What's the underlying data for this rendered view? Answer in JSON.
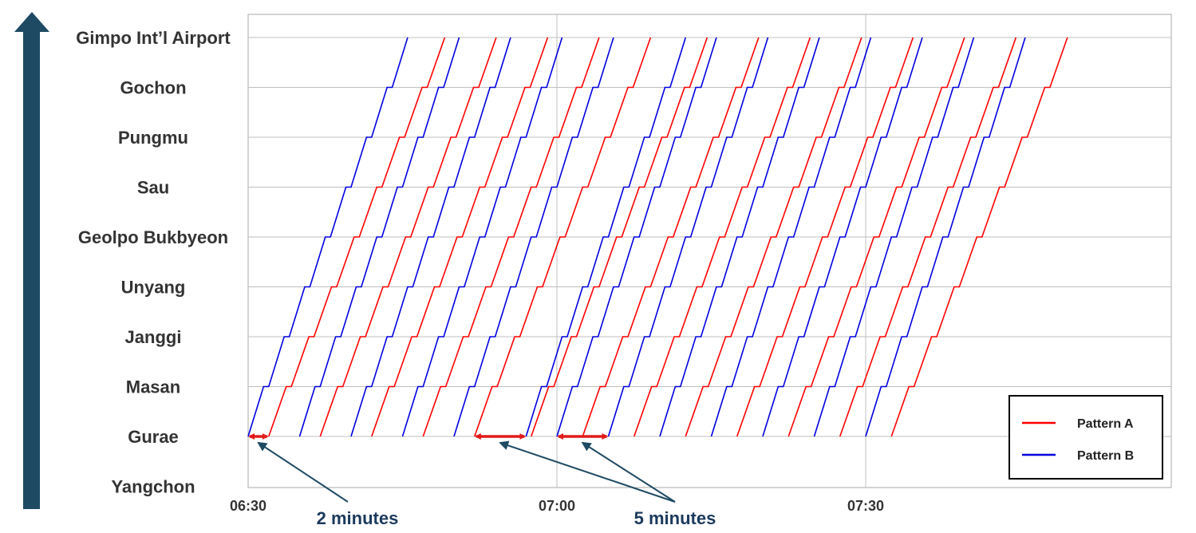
{
  "chart_data": {
    "type": "line",
    "chart_kind": "train time-space diagram",
    "stations": [
      "Yangchon",
      "Gurae",
      "Masan",
      "Janggi",
      "Unyang",
      "Geolpo Bukbyeon",
      "Sau",
      "Pungmu",
      "Gochon",
      "Gimpo Int’l Airport"
    ],
    "x_ticks": [
      "06:30",
      "07:00",
      "07:30"
    ],
    "x_unit": "minutes after 06:30",
    "xlim": [
      0,
      90
    ],
    "grid": true,
    "legend_position": "bottom-right",
    "departures_from_gurae": {
      "Pattern A": [
        2,
        7,
        12,
        17,
        22,
        27.5,
        32.5,
        37.5,
        42.5,
        47.5,
        52.5,
        57.5,
        62.5
      ],
      "Pattern B": [
        0,
        5,
        10,
        15,
        20,
        27,
        30,
        35,
        40,
        45,
        50,
        55,
        60
      ]
    },
    "series": [
      {
        "name": "Pattern A",
        "color": "#ff0000",
        "segment_run_minutes": 1.7,
        "dwell_minutes": 0.5,
        "profile": "A"
      },
      {
        "name": "Pattern B",
        "color": "#0000e0",
        "segment_run_minutes": 1.5,
        "dwell_minutes": 0.5,
        "profile": "B"
      }
    ],
    "annotations": [
      {
        "text": "2 minutes",
        "brackets": [
          [
            0,
            2
          ]
        ]
      },
      {
        "text": "5 minutes",
        "brackets": [
          [
            22,
            27
          ],
          [
            30,
            35
          ]
        ]
      }
    ]
  },
  "axis_arrow_color": "#1e4a63"
}
